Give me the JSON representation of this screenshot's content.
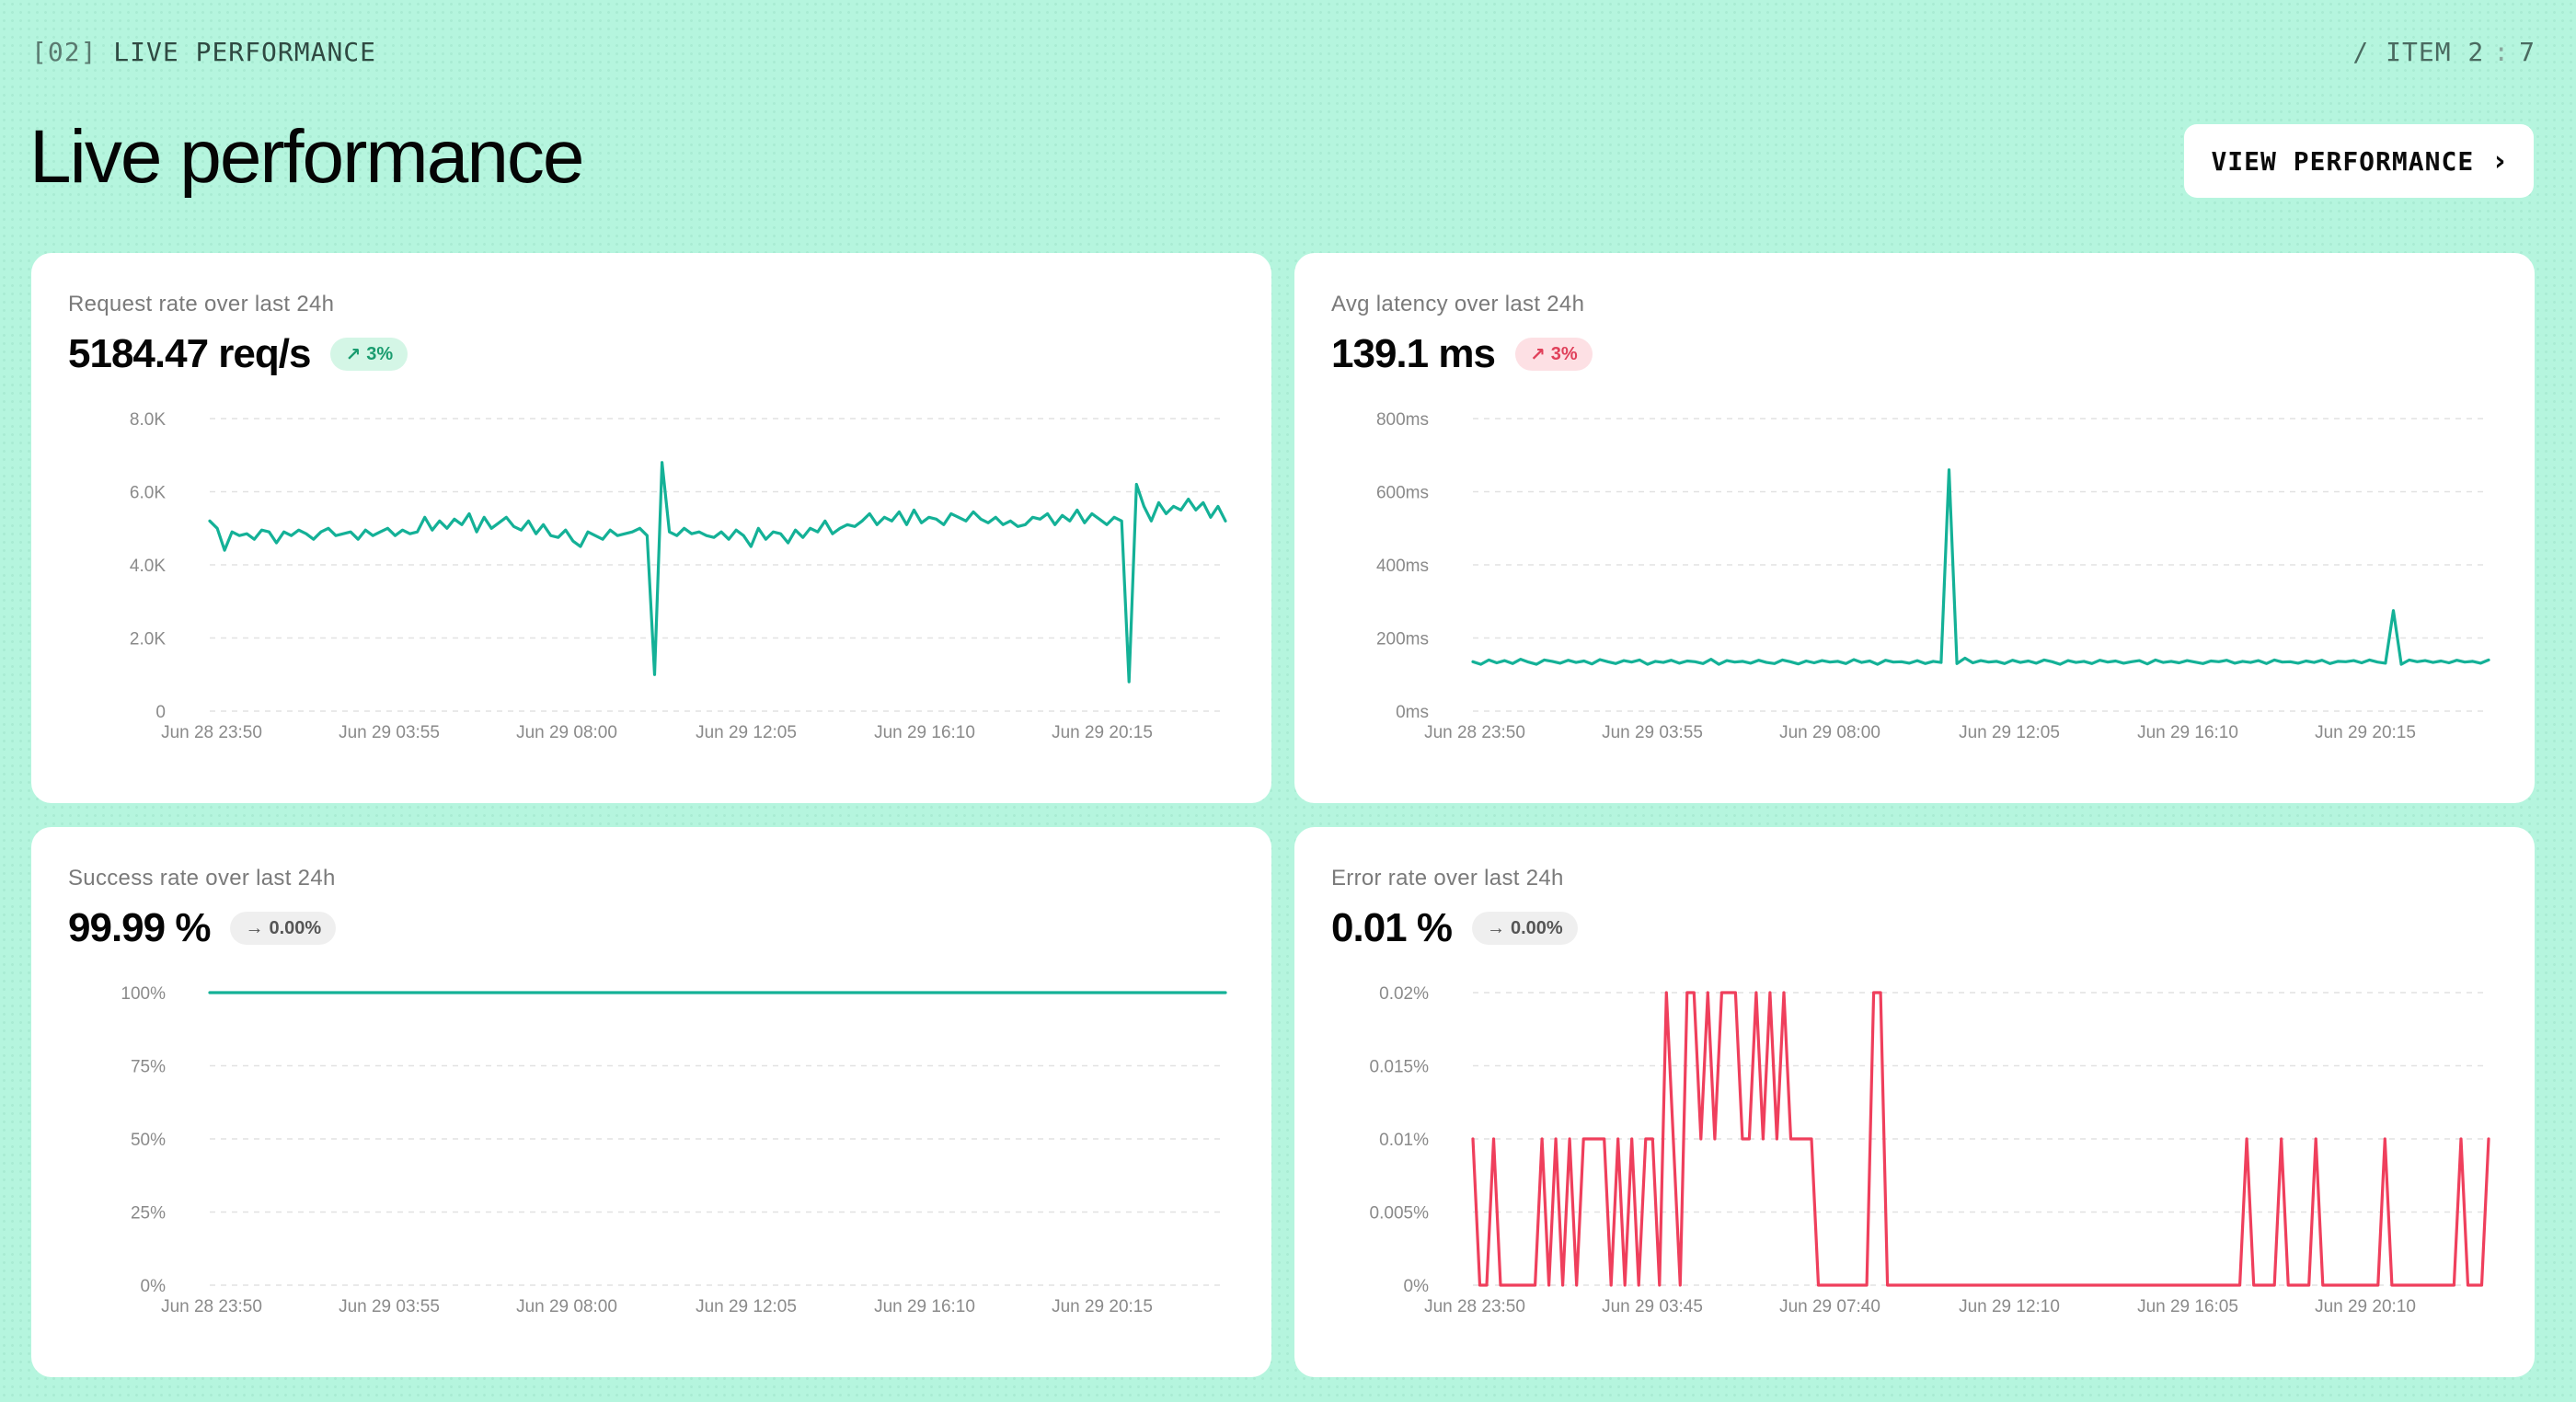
{
  "header": {
    "section_num": "[02]",
    "section_name": "LIVE PERFORMANCE",
    "counter_prefix": "/ ITEM",
    "counter_current": "2",
    "counter_sep": ":",
    "counter_total": "7",
    "title": "Live performance",
    "view_button": "VIEW PERFORMANCE"
  },
  "colors": {
    "teal": "#14b197",
    "red": "#ef3f5c",
    "background": "#b5f5de"
  },
  "chart_data": [
    {
      "id": "request-rate",
      "type": "line",
      "title": "Request rate over last 24h",
      "metric": "5184.47 req/s",
      "badge": {
        "text": "3%",
        "arrow": "↗",
        "tone": "up-good"
      },
      "color": "#14b197",
      "ylim": [
        0,
        8000
      ],
      "yticks": [
        0,
        2000,
        4000,
        6000,
        8000
      ],
      "ytick_labels": [
        "0",
        "2.0K",
        "4.0K",
        "6.0K",
        "8.0K"
      ],
      "xticks": [
        "Jun 28 23:50",
        "Jun 29 03:55",
        "Jun 29 08:00",
        "Jun 29 12:05",
        "Jun 29 16:10",
        "Jun 29 20:15"
      ],
      "values": [
        5200,
        5000,
        4400,
        4900,
        4800,
        4850,
        4700,
        4950,
        4900,
        4600,
        4900,
        4800,
        4950,
        4850,
        4700,
        4900,
        5000,
        4800,
        4850,
        4900,
        4700,
        4950,
        4800,
        4900,
        5000,
        4800,
        4950,
        4850,
        4900,
        5300,
        4950,
        5200,
        5000,
        5250,
        5100,
        5400,
        4900,
        5300,
        5000,
        5150,
        5300,
        5050,
        4950,
        5200,
        4850,
        5100,
        4800,
        4750,
        4950,
        4650,
        4500,
        4900,
        4800,
        4700,
        4950,
        4800,
        4850,
        4900,
        5000,
        4800,
        1000,
        6800,
        4900,
        4800,
        5000,
        4850,
        4900,
        4800,
        4750,
        4900,
        4700,
        4950,
        4800,
        4500,
        5000,
        4700,
        4900,
        4850,
        4600,
        4950,
        4750,
        5000,
        4900,
        5200,
        4850,
        5000,
        5100,
        5050,
        5200,
        5400,
        5100,
        5300,
        5200,
        5450,
        5100,
        5500,
        5150,
        5300,
        5250,
        5100,
        5400,
        5300,
        5200,
        5450,
        5250,
        5150,
        5300,
        5100,
        5200,
        5050,
        5100,
        5300,
        5250,
        5400,
        5100,
        5350,
        5200,
        5500,
        5150,
        5400,
        5250,
        5100,
        5300,
        5200,
        800,
        6200,
        5600,
        5200,
        5700,
        5400,
        5600,
        5500,
        5800,
        5500,
        5700,
        5300,
        5600,
        5200
      ]
    },
    {
      "id": "avg-latency",
      "type": "line",
      "title": "Avg latency over last 24h",
      "metric": "139.1 ms",
      "badge": {
        "text": "3%",
        "arrow": "↗",
        "tone": "up-bad"
      },
      "color": "#14b197",
      "ylim": [
        0,
        800
      ],
      "yticks": [
        0,
        200,
        400,
        600,
        800
      ],
      "ytick_labels": [
        "0ms",
        "200ms",
        "400ms",
        "600ms",
        "800ms"
      ],
      "xticks": [
        "Jun 28 23:50",
        "Jun 29 03:55",
        "Jun 29 08:00",
        "Jun 29 12:05",
        "Jun 29 16:10",
        "Jun 29 20:15"
      ],
      "values": [
        135,
        128,
        140,
        132,
        138,
        130,
        142,
        134,
        128,
        140,
        136,
        131,
        139,
        133,
        137,
        129,
        141,
        135,
        130,
        138,
        134,
        140,
        128,
        136,
        133,
        139,
        131,
        137,
        135,
        130,
        142,
        128,
        138,
        134,
        136,
        131,
        139,
        133,
        130,
        140,
        135,
        129,
        137,
        132,
        138,
        134,
        136,
        130,
        141,
        133,
        137,
        128,
        139,
        134,
        135,
        131,
        138,
        130,
        136,
        133,
        660,
        130,
        145,
        132,
        138,
        134,
        136,
        130,
        139,
        133,
        137,
        131,
        140,
        135,
        128,
        138,
        133,
        136,
        130,
        139,
        134,
        137,
        131,
        135,
        138,
        129,
        140,
        133,
        136,
        132,
        138,
        134,
        130,
        137,
        135,
        139,
        131,
        136,
        133,
        138,
        130,
        140,
        134,
        135,
        131,
        137,
        133,
        139,
        130,
        136,
        135,
        138,
        132,
        140,
        134,
        131,
        275,
        128,
        140,
        135,
        138,
        133,
        137,
        132,
        139,
        134,
        136,
        131,
        140
      ]
    },
    {
      "id": "success-rate",
      "type": "line",
      "title": "Success rate over last 24h",
      "metric": "99.99 %",
      "badge": {
        "text": "0.00%",
        "arrow": "→",
        "tone": "flat"
      },
      "color": "#14b197",
      "ylim": [
        0,
        100
      ],
      "yticks": [
        0,
        25,
        50,
        75,
        100
      ],
      "ytick_labels": [
        "0%",
        "25%",
        "50%",
        "75%",
        "100%"
      ],
      "xticks": [
        "Jun 28 23:50",
        "Jun 29 03:55",
        "Jun 29 08:00",
        "Jun 29 12:05",
        "Jun 29 16:10",
        "Jun 29 20:15"
      ],
      "values": [
        99.99,
        99.99,
        99.99,
        99.99,
        99.99,
        99.99,
        99.99,
        99.99,
        99.99,
        99.99,
        99.99,
        99.99,
        99.99,
        99.99,
        99.99,
        99.99,
        99.99,
        99.99,
        99.99,
        99.99
      ]
    },
    {
      "id": "error-rate",
      "type": "line",
      "title": "Error rate over last 24h",
      "metric": "0.01 %",
      "badge": {
        "text": "0.00%",
        "arrow": "→",
        "tone": "flat"
      },
      "color": "#ef3f5c",
      "ylim": [
        0,
        0.02
      ],
      "yticks": [
        0,
        0.005,
        0.01,
        0.015,
        0.02
      ],
      "ytick_labels": [
        "0%",
        "0.005%",
        "0.01%",
        "0.015%",
        "0.02%"
      ],
      "xticks": [
        "Jun 28 23:50",
        "Jun 29 03:45",
        "Jun 29 07:40",
        "Jun 29 12:10",
        "Jun 29 16:05",
        "Jun 29 20:10"
      ],
      "values": [
        0.01,
        0,
        0,
        0.01,
        0,
        0,
        0,
        0,
        0,
        0,
        0.01,
        0,
        0.01,
        0,
        0.01,
        0,
        0.01,
        0.01,
        0.01,
        0.01,
        0,
        0.01,
        0,
        0.01,
        0,
        0.01,
        0.01,
        0,
        0.02,
        0.01,
        0,
        0.02,
        0.02,
        0.01,
        0.02,
        0.01,
        0.02,
        0.02,
        0.02,
        0.01,
        0.01,
        0.02,
        0.01,
        0.02,
        0.01,
        0.02,
        0.01,
        0.01,
        0.01,
        0.01,
        0,
        0,
        0,
        0,
        0,
        0,
        0,
        0,
        0.02,
        0.02,
        0,
        0,
        0,
        0,
        0,
        0,
        0,
        0,
        0,
        0,
        0,
        0,
        0,
        0,
        0,
        0,
        0,
        0,
        0,
        0,
        0,
        0,
        0,
        0,
        0,
        0,
        0,
        0,
        0,
        0,
        0,
        0,
        0,
        0,
        0,
        0,
        0,
        0,
        0,
        0,
        0,
        0,
        0,
        0,
        0,
        0,
        0,
        0,
        0,
        0,
        0,
        0,
        0.01,
        0,
        0,
        0,
        0,
        0.01,
        0,
        0,
        0,
        0,
        0.01,
        0,
        0,
        0,
        0,
        0,
        0,
        0,
        0,
        0,
        0.01,
        0,
        0,
        0,
        0,
        0,
        0,
        0,
        0,
        0,
        0,
        0.01,
        0,
        0,
        0,
        0.01
      ]
    }
  ]
}
